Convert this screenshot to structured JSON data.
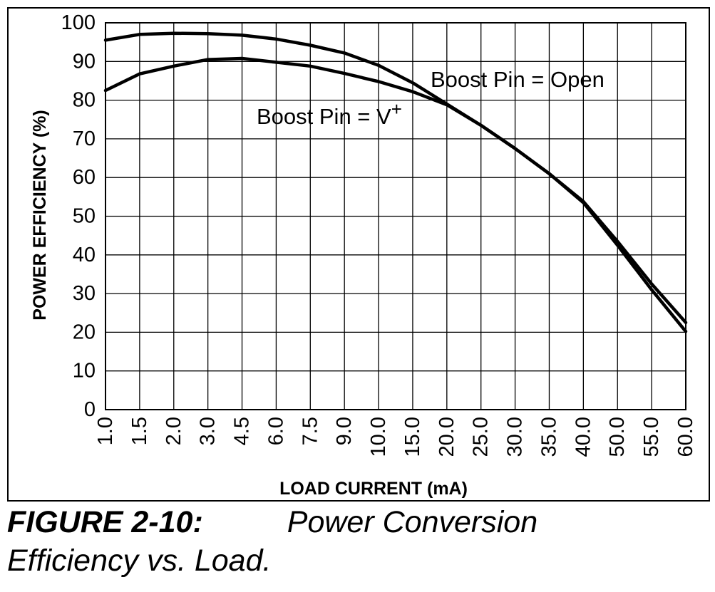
{
  "caption": {
    "figure_label": "FIGURE 2-10:",
    "title_line1": "Power Conversion",
    "title_line2": "Efficiency vs. Load."
  },
  "chart_data": {
    "type": "line",
    "xlabel": "LOAD CURRENT (mA)",
    "ylabel": "POWER EFFICIENCY (%)",
    "categories": [
      "1.0",
      "1.5",
      "2.0",
      "3.0",
      "4.5",
      "6.0",
      "7.5",
      "9.0",
      "10.0",
      "15.0",
      "20.0",
      "25.0",
      "30.0",
      "35.0",
      "40.0",
      "50.0",
      "55.0",
      "60.0"
    ],
    "ylim": [
      0,
      100
    ],
    "yticks": [
      0,
      10,
      20,
      30,
      40,
      50,
      60,
      70,
      80,
      90,
      100
    ],
    "grid": true,
    "series": [
      {
        "name": "Boost Pin = Open",
        "values": [
          95.5,
          97,
          97.3,
          97.2,
          96.8,
          95.8,
          94.2,
          92.2,
          89,
          84.5,
          79,
          73.5,
          67.5,
          61,
          53.8,
          43.5,
          32.5,
          22.5
        ]
      },
      {
        "name": "Boost Pin = V",
        "name_sup": "+",
        "values": [
          82.5,
          86.8,
          88.8,
          90.5,
          90.8,
          89.8,
          88.8,
          86.9,
          84.8,
          82.2,
          78.8,
          73.5,
          67.5,
          61,
          53.5,
          42.5,
          31,
          20.2
        ]
      }
    ],
    "annotations": [
      "Boost Pin = Open",
      "Boost Pin = V",
      "+"
    ],
    "colors": {
      "line": "#000000",
      "grid": "#000000",
      "background": "#ffffff"
    }
  }
}
